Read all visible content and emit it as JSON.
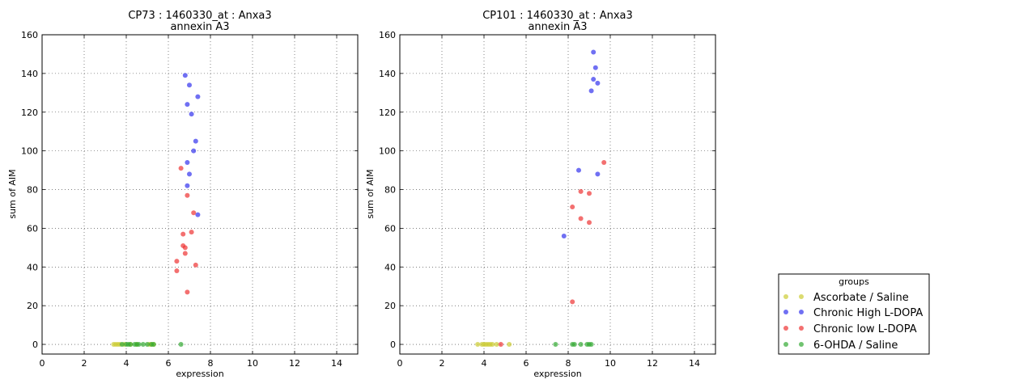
{
  "chart_data": [
    {
      "type": "scatter",
      "title_line1": "CP73 : 1460330_at : Anxa3",
      "title_line2": "annexin A3",
      "xlabel": "expression",
      "ylabel": "sum of AIM",
      "xlim": [
        0,
        15
      ],
      "ylim": [
        -5,
        160
      ],
      "xticks": [
        0,
        2,
        4,
        6,
        8,
        10,
        12,
        14
      ],
      "yticks": [
        0,
        20,
        40,
        60,
        80,
        100,
        120,
        140,
        160
      ],
      "grid": true,
      "series": [
        {
          "group": "ascorbate",
          "color": "#cccc33",
          "points": [
            [
              3.4,
              0
            ],
            [
              3.5,
              0
            ],
            [
              3.6,
              0
            ],
            [
              3.7,
              0
            ],
            [
              3.9,
              0
            ],
            [
              4.2,
              0
            ],
            [
              4.5,
              0
            ],
            [
              5.1,
              0
            ],
            [
              5.2,
              0
            ],
            [
              5.3,
              0
            ]
          ]
        },
        {
          "group": "chronic_high",
          "color": "#3333ee",
          "points": [
            [
              6.8,
              139
            ],
            [
              7.0,
              134
            ],
            [
              7.4,
              128
            ],
            [
              6.9,
              124
            ],
            [
              7.1,
              119
            ],
            [
              7.3,
              105
            ],
            [
              7.2,
              100
            ],
            [
              6.9,
              94
            ],
            [
              7.0,
              88
            ],
            [
              6.9,
              82
            ],
            [
              7.4,
              67
            ]
          ]
        },
        {
          "group": "chronic_low",
          "color": "#ee3333",
          "points": [
            [
              6.6,
              91
            ],
            [
              6.9,
              77
            ],
            [
              7.2,
              68
            ],
            [
              7.1,
              58
            ],
            [
              6.7,
              57
            ],
            [
              6.7,
              51
            ],
            [
              6.8,
              50
            ],
            [
              6.8,
              47
            ],
            [
              6.4,
              43
            ],
            [
              7.3,
              41
            ],
            [
              6.4,
              38
            ],
            [
              6.9,
              27
            ]
          ]
        },
        {
          "group": "ohda",
          "color": "#33aa33",
          "points": [
            [
              3.8,
              0
            ],
            [
              4.0,
              0
            ],
            [
              4.1,
              0
            ],
            [
              4.2,
              0
            ],
            [
              4.4,
              0
            ],
            [
              4.5,
              0
            ],
            [
              4.6,
              0
            ],
            [
              4.8,
              0
            ],
            [
              5.0,
              0
            ],
            [
              5.2,
              0
            ],
            [
              5.3,
              0
            ],
            [
              6.6,
              0
            ]
          ]
        }
      ]
    },
    {
      "type": "scatter",
      "title_line1": "CP101 : 1460330_at : Anxa3",
      "title_line2": "annexin A3",
      "xlabel": "expression",
      "ylabel": "sum of AIM",
      "xlim": [
        0,
        15
      ],
      "ylim": [
        -5,
        160
      ],
      "xticks": [
        0,
        2,
        4,
        6,
        8,
        10,
        12,
        14
      ],
      "yticks": [
        0,
        20,
        40,
        60,
        80,
        100,
        120,
        140,
        160
      ],
      "grid": true,
      "series": [
        {
          "group": "ascorbate",
          "color": "#cccc33",
          "points": [
            [
              3.7,
              0
            ],
            [
              3.9,
              0
            ],
            [
              4.0,
              0
            ],
            [
              4.1,
              0
            ],
            [
              4.2,
              0
            ],
            [
              4.3,
              0
            ],
            [
              4.4,
              0
            ],
            [
              4.6,
              0
            ],
            [
              5.2,
              0
            ]
          ]
        },
        {
          "group": "chronic_high",
          "color": "#3333ee",
          "points": [
            [
              9.2,
              151
            ],
            [
              9.3,
              143
            ],
            [
              9.2,
              137
            ],
            [
              9.4,
              135
            ],
            [
              9.1,
              131
            ],
            [
              8.5,
              90
            ],
            [
              9.4,
              88
            ],
            [
              7.8,
              56
            ]
          ]
        },
        {
          "group": "chronic_low",
          "color": "#ee3333",
          "points": [
            [
              9.7,
              94
            ],
            [
              8.6,
              79
            ],
            [
              9.0,
              78
            ],
            [
              8.2,
              71
            ],
            [
              8.6,
              65
            ],
            [
              9.0,
              63
            ],
            [
              8.2,
              22
            ],
            [
              4.8,
              0
            ]
          ]
        },
        {
          "group": "ohda",
          "color": "#33aa33",
          "points": [
            [
              7.4,
              0
            ],
            [
              8.2,
              0
            ],
            [
              8.3,
              0
            ],
            [
              8.6,
              0
            ],
            [
              8.9,
              0
            ],
            [
              9.0,
              0
            ],
            [
              9.1,
              0
            ]
          ]
        }
      ]
    }
  ],
  "legend": {
    "title": "groups",
    "placement": "right",
    "entries": [
      {
        "group": "ascorbate",
        "label": "Ascorbate / Saline",
        "color": "#cccc33"
      },
      {
        "group": "chronic_high",
        "label": "Chronic High L-DOPA",
        "color": "#3333ee"
      },
      {
        "group": "chronic_low",
        "label": "Chronic low L-DOPA",
        "color": "#ee3333"
      },
      {
        "group": "ohda",
        "label": "6-OHDA / Saline",
        "color": "#33aa33"
      }
    ]
  }
}
